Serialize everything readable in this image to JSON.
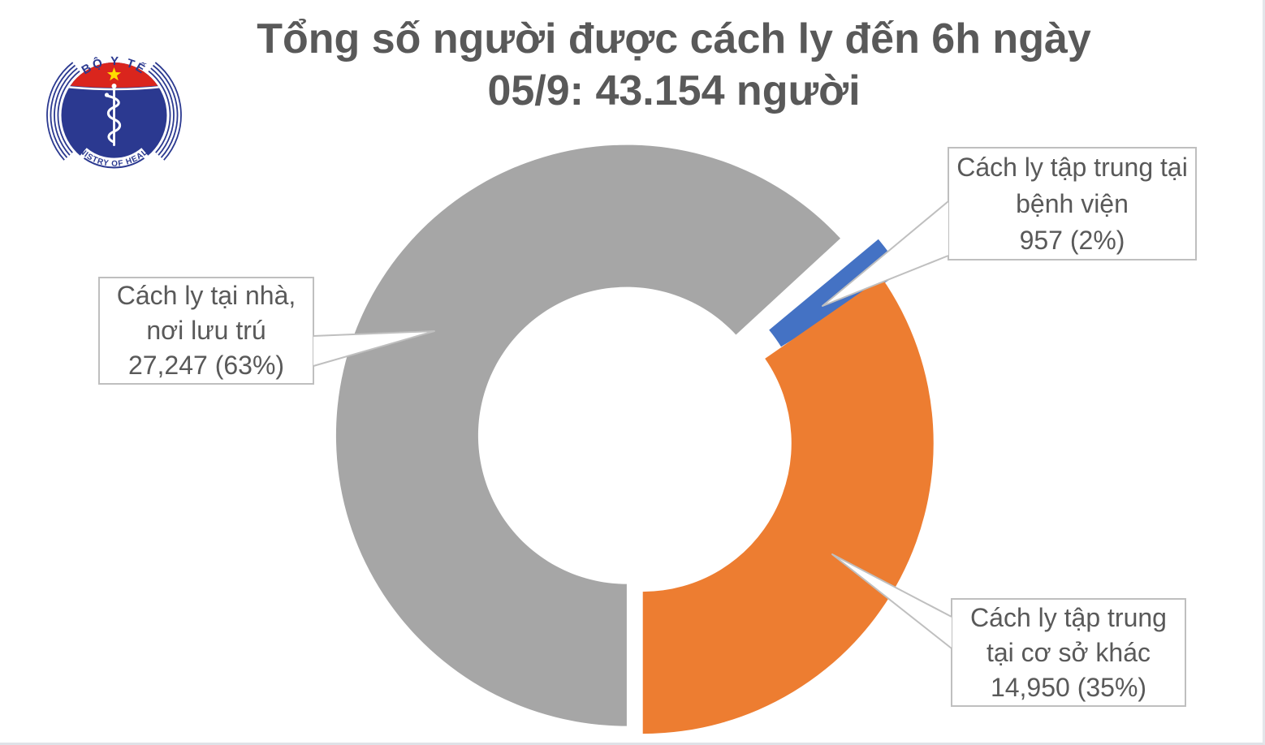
{
  "header": {
    "title_line1": "Tổng số người được cách ly đến 6h ngày",
    "title_line2": "05/9: 43.154 người"
  },
  "logo": {
    "top_text": "BỘ Y TẾ",
    "bottom_text": "MINISTRY OF HEALTH",
    "navy": "#2B3990",
    "red": "#DA251D",
    "star_yellow": "#FFDE00"
  },
  "callouts": {
    "home": {
      "lines": [
        "Cách ly tại nhà,",
        "nơi lưu trú",
        "27,247 (63%)"
      ]
    },
    "hospital": {
      "lines": [
        "Cách ly tập trung tại",
        "bệnh viện",
        "957 (2%)"
      ]
    },
    "other": {
      "lines": [
        "Cách ly tập trung",
        "tại cơ sở khác",
        "14,950 (35%)"
      ]
    }
  },
  "chart_data": {
    "type": "pie",
    "subtype": "doughnut-exploded",
    "title": "Tổng số người được cách ly đến 6h ngày 05/9: 43.154 người",
    "total": 43154,
    "categories": [
      "Cách ly tại nhà, nơi lưu trú",
      "Cách ly tập trung tại bệnh viện",
      "Cách ly tập trung tại cơ sở khác"
    ],
    "values": [
      27247,
      957,
      14950
    ],
    "percents": [
      63,
      2,
      35
    ],
    "colors": [
      "#A6A6A6",
      "#4472C4",
      "#ED7D31"
    ],
    "legend_position": "none",
    "labels_as_callouts": true,
    "callout_border_color": "#BFBFBF",
    "text_color": "#595959"
  }
}
